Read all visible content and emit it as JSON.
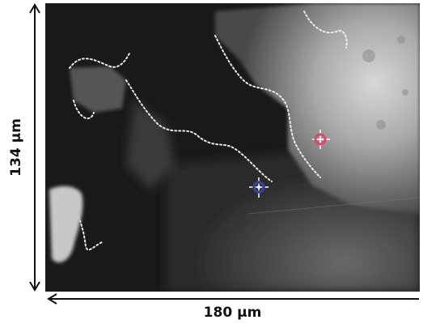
{
  "scale_bars": {
    "vertical_label": "134 µm",
    "horizontal_label": "180 µm"
  },
  "markers": [
    {
      "name": "red-marker",
      "color": "#d94a67"
    },
    {
      "name": "blue-marker",
      "color": "#3d3f8f"
    }
  ],
  "colors": {
    "dark_region": "#161616",
    "bright_region": "#c9c9c9",
    "edge_glow": "#f4f4f4"
  }
}
